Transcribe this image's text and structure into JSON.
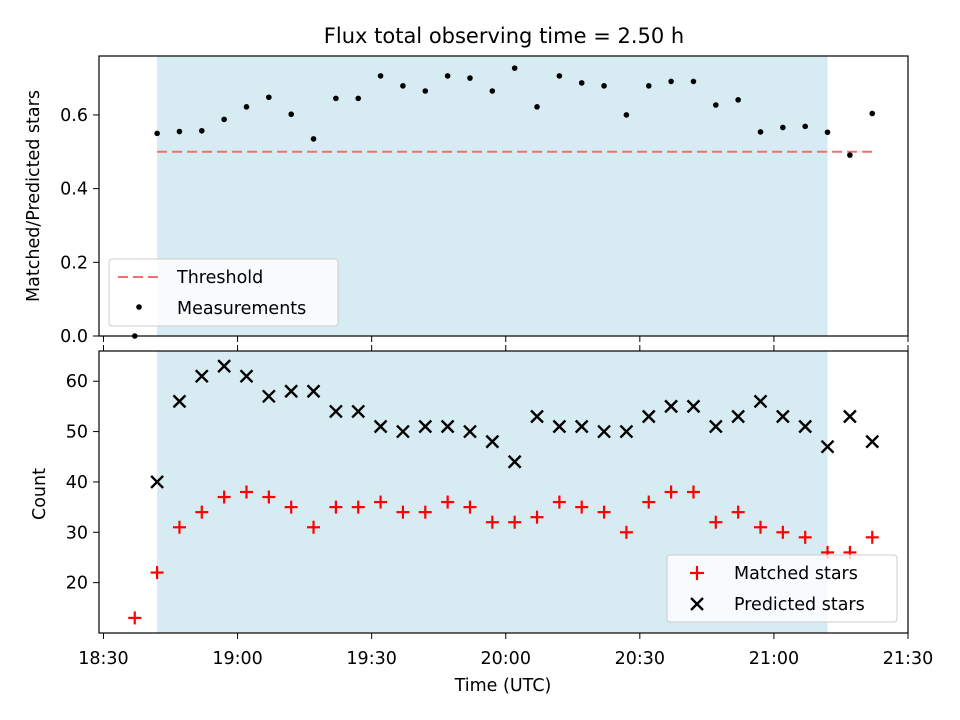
{
  "title": "Flux total observing time = 2.50 h",
  "xlabel": "Time (UTC)",
  "xticks": [
    "18:30",
    "19:00",
    "19:30",
    "20:00",
    "20:30",
    "21:00",
    "21:30"
  ],
  "colors": {
    "shade": "#add8e6",
    "threshold": "#f07070",
    "matched": "#ff0000",
    "predicted": "#000000",
    "measurement": "#000000"
  },
  "chart_data": [
    {
      "type": "scatter",
      "ylabel": "Matched/Predicted stars",
      "xlim": [
        "18:29",
        "21:30"
      ],
      "ylim": [
        0,
        0.76
      ],
      "yticks": [
        "0.0",
        "0.2",
        "0.4",
        "0.6"
      ],
      "shaded_span": [
        "18:42",
        "21:12"
      ],
      "threshold": {
        "name": "Threshold",
        "value": 0.5,
        "x_range": [
          "18:42",
          "21:22"
        ]
      },
      "legend": {
        "location": "lower-left",
        "entries": [
          "Threshold",
          "Measurements"
        ]
      },
      "series": [
        {
          "name": "Measurements",
          "x": [
            "18:37",
            "18:42",
            "18:47",
            "18:52",
            "18:57",
            "19:02",
            "19:07",
            "19:12",
            "19:17",
            "19:22",
            "19:27",
            "19:32",
            "19:37",
            "19:42",
            "19:47",
            "19:52",
            "19:57",
            "20:02",
            "20:07",
            "20:12",
            "20:17",
            "20:22",
            "20:27",
            "20:32",
            "20:37",
            "20:42",
            "20:47",
            "20:52",
            "20:57",
            "21:02",
            "21:07",
            "21:12",
            "21:17",
            "21:22"
          ],
          "values": [
            0.0,
            0.55,
            0.555,
            0.557,
            0.588,
            0.622,
            0.648,
            0.602,
            0.535,
            0.645,
            0.645,
            0.706,
            0.679,
            0.665,
            0.706,
            0.7,
            0.665,
            0.727,
            0.622,
            0.706,
            0.687,
            0.679,
            0.6,
            0.679,
            0.691,
            0.691,
            0.627,
            0.641,
            0.554,
            0.566,
            0.569,
            0.553,
            0.491,
            0.604
          ]
        }
      ]
    },
    {
      "type": "scatter",
      "ylabel": "Count",
      "xlim": [
        "18:29",
        "21:30"
      ],
      "ylim": [
        10,
        66
      ],
      "yticks": [
        "20",
        "30",
        "40",
        "50",
        "60"
      ],
      "shaded_span": [
        "18:42",
        "21:12"
      ],
      "legend": {
        "location": "lower-right",
        "entries": [
          "Matched stars",
          "Predicted stars"
        ]
      },
      "series": [
        {
          "name": "Matched stars",
          "x": [
            "18:37",
            "18:42",
            "18:47",
            "18:52",
            "18:57",
            "19:02",
            "19:07",
            "19:12",
            "19:17",
            "19:22",
            "19:27",
            "19:32",
            "19:37",
            "19:42",
            "19:47",
            "19:52",
            "19:57",
            "20:02",
            "20:07",
            "20:12",
            "20:17",
            "20:22",
            "20:27",
            "20:32",
            "20:37",
            "20:42",
            "20:47",
            "20:52",
            "20:57",
            "21:02",
            "21:07",
            "21:12",
            "21:17",
            "21:22"
          ],
          "values": [
            13,
            22,
            31,
            34,
            37,
            38,
            37,
            35,
            31,
            35,
            35,
            36,
            34,
            34,
            36,
            35,
            32,
            32,
            33,
            36,
            35,
            34,
            30,
            36,
            38,
            38,
            32,
            34,
            31,
            30,
            29,
            26,
            26,
            29
          ]
        },
        {
          "name": "Predicted stars",
          "x": [
            "18:42",
            "18:47",
            "18:52",
            "18:57",
            "19:02",
            "19:07",
            "19:12",
            "19:17",
            "19:22",
            "19:27",
            "19:32",
            "19:37",
            "19:42",
            "19:47",
            "19:52",
            "19:57",
            "20:02",
            "20:07",
            "20:12",
            "20:17",
            "20:22",
            "20:27",
            "20:32",
            "20:37",
            "20:42",
            "20:47",
            "20:52",
            "20:57",
            "21:02",
            "21:07",
            "21:12",
            "21:17",
            "21:22"
          ],
          "values": [
            40,
            56,
            61,
            63,
            61,
            57,
            58,
            58,
            54,
            54,
            51,
            50,
            51,
            51,
            50,
            48,
            44,
            53,
            51,
            51,
            50,
            50,
            53,
            55,
            55,
            51,
            53,
            56,
            53,
            51,
            47,
            53,
            48
          ]
        }
      ]
    }
  ]
}
